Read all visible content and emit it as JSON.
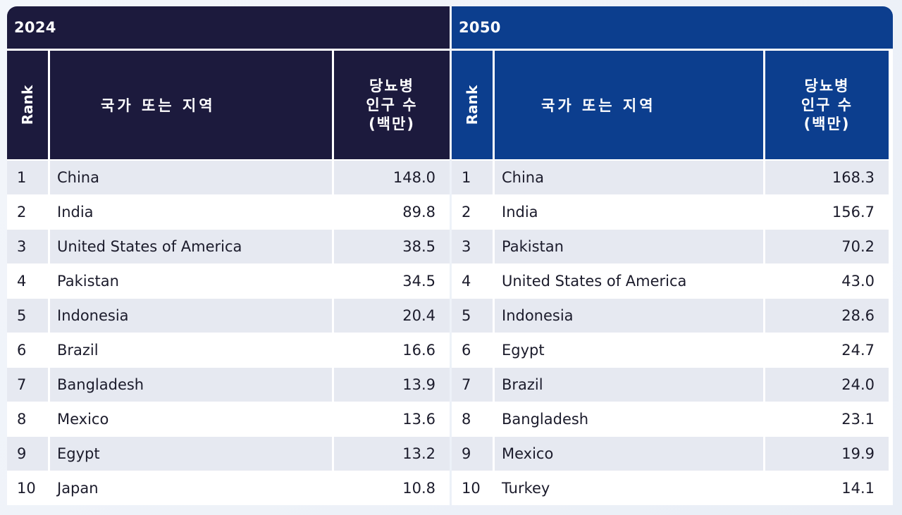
{
  "tables": [
    {
      "year": "2024",
      "headers": {
        "rank": "Rank",
        "country": "국가 또는 지역",
        "value": "당뇨병\n인구 수\n(백만)"
      },
      "rows": [
        {
          "rank": "1",
          "country": "China",
          "value": "148.0"
        },
        {
          "rank": "2",
          "country": "India",
          "value": "89.8"
        },
        {
          "rank": "3",
          "country": "United States of America",
          "value": "38.5"
        },
        {
          "rank": "4",
          "country": "Pakistan",
          "value": "34.5"
        },
        {
          "rank": "5",
          "country": "Indonesia",
          "value": "20.4"
        },
        {
          "rank": "6",
          "country": "Brazil",
          "value": "16.6"
        },
        {
          "rank": "7",
          "country": "Bangladesh",
          "value": "13.9"
        },
        {
          "rank": "8",
          "country": "Mexico",
          "value": "13.6"
        },
        {
          "rank": "9",
          "country": "Egypt",
          "value": "13.2"
        },
        {
          "rank": "10",
          "country": "Japan",
          "value": "10.8"
        }
      ]
    },
    {
      "year": "2050",
      "headers": {
        "rank": "Rank",
        "country": "국가 또는 지역",
        "value": "당뇨병\n인구 수\n(백만)"
      },
      "rows": [
        {
          "rank": "1",
          "country": "China",
          "value": "168.3"
        },
        {
          "rank": "2",
          "country": "India",
          "value": "156.7"
        },
        {
          "rank": "3",
          "country": "Pakistan",
          "value": "70.2"
        },
        {
          "rank": "4",
          "country": "United States of America",
          "value": "43.0"
        },
        {
          "rank": "5",
          "country": "Indonesia",
          "value": "28.6"
        },
        {
          "rank": "6",
          "country": "Egypt",
          "value": "24.7"
        },
        {
          "rank": "7",
          "country": "Brazil",
          "value": "24.0"
        },
        {
          "rank": "8",
          "country": "Bangladesh",
          "value": "23.1"
        },
        {
          "rank": "9",
          "country": "Mexico",
          "value": "19.9"
        },
        {
          "rank": "10",
          "country": "Turkey",
          "value": "14.1"
        }
      ]
    }
  ],
  "colors": {
    "header_2024": "#1c1a3d",
    "header_2050": "#0c3e8e",
    "row_alt": "#e6e9f1",
    "row_plain": "#ffffff"
  }
}
